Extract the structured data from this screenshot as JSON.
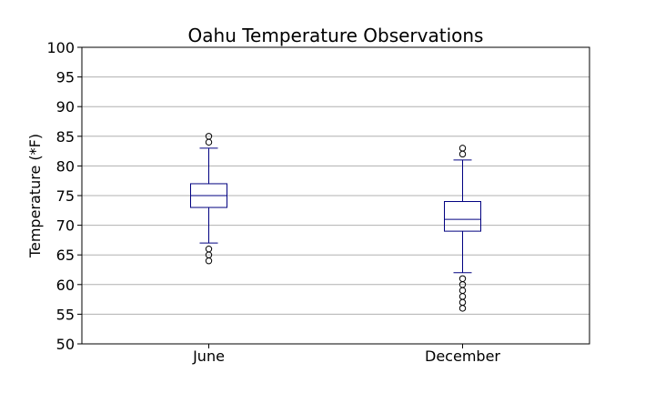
{
  "chart_data": {
    "type": "box",
    "title": "Oahu Temperature Observations",
    "xlabel": "",
    "ylabel": "Temperature (*F)",
    "ylim": [
      50,
      100
    ],
    "yticks": [
      50,
      55,
      60,
      65,
      70,
      75,
      80,
      85,
      90,
      95,
      100
    ],
    "grid": "horizontal",
    "categories": [
      "June",
      "December"
    ],
    "boxes": [
      {
        "label": "June",
        "whisker_low": 67,
        "q1": 73,
        "median": 75,
        "q3": 77,
        "whisker_high": 83,
        "outliers": [
          64,
          65,
          66,
          84,
          85
        ]
      },
      {
        "label": "December",
        "whisker_low": 62,
        "q1": 69,
        "median": 71,
        "q3": 74,
        "whisker_high": 81,
        "outliers": [
          56,
          57,
          58,
          59,
          60,
          61,
          82,
          83
        ]
      }
    ],
    "colors": {
      "box": "#000080",
      "median": "#ff7f0e",
      "grid": "#b0b0b0",
      "axis": "#000000"
    }
  }
}
